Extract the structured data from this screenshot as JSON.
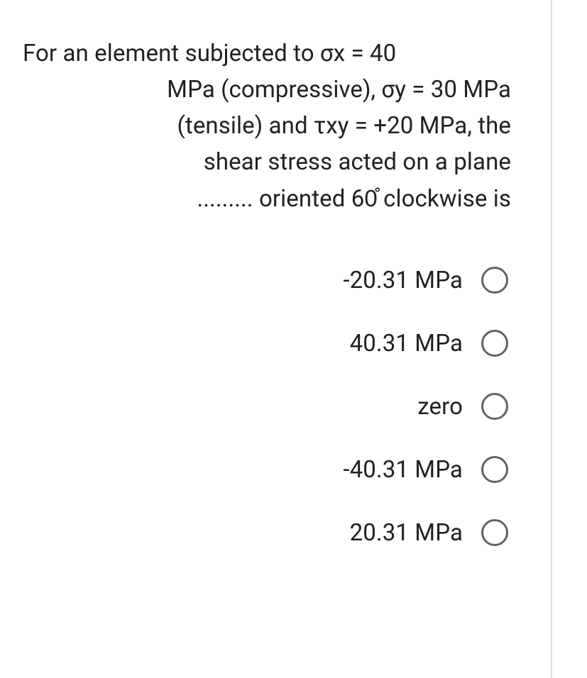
{
  "question": {
    "line1": "For an element subjected to σx = 40",
    "line2": "MPa (compressive), σy = 30 MPa",
    "line3": "(tensile) and τxy = +20 MPa, the",
    "line4": "shear stress acted on a plane",
    "line5": "......... oriented 60̊ clockwise is"
  },
  "options": [
    {
      "label": "-20.31 MPa"
    },
    {
      "label": "40.31 MPa"
    },
    {
      "label": "zero"
    },
    {
      "label": "-40.31 MPa"
    },
    {
      "label": "20.31 MPa"
    }
  ],
  "colors": {
    "text": "#202124",
    "border": "#dadce0",
    "radio_border": "#5f6368",
    "background": "#ffffff"
  },
  "typography": {
    "question_fontsize": 33,
    "option_fontsize": 33,
    "line_height": 1.55
  }
}
